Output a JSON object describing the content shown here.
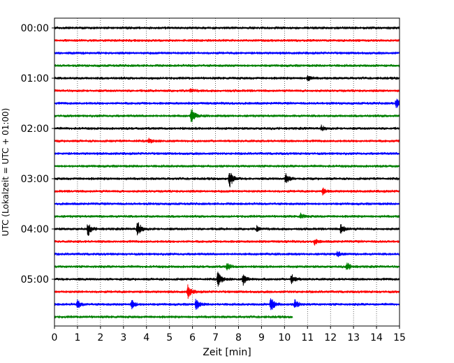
{
  "chart_data": {
    "type": "line",
    "subtype": "helicorder",
    "xlabel": "Zeit  [min]",
    "ylabel": "UTC (Lokalzeit = UTC + 01:00)",
    "xlim": [
      0,
      15
    ],
    "x_ticks": [
      "0",
      "1",
      "2",
      "3",
      "4",
      "5",
      "6",
      "7",
      "8",
      "9",
      "10",
      "11",
      "12",
      "13",
      "14",
      "15"
    ],
    "y_ticks": [
      "00:00",
      "01:00",
      "02:00",
      "03:00",
      "04:00",
      "05:00"
    ],
    "grid": "vertical dotted at each minute",
    "trace_colors": [
      "#000000",
      "#ff0000",
      "#0000ff",
      "#008000"
    ],
    "last_trace_end_min": 10.35,
    "rows": [
      {
        "start": "00:00",
        "color": "#000000",
        "events": []
      },
      {
        "start": "00:15",
        "color": "#ff0000",
        "events": []
      },
      {
        "start": "00:30",
        "color": "#0000ff",
        "events": []
      },
      {
        "start": "00:45",
        "color": "#008000",
        "events": []
      },
      {
        "start": "01:00",
        "color": "#000000",
        "events": [
          {
            "t": 11.0,
            "amp": 0.3
          }
        ]
      },
      {
        "start": "01:15",
        "color": "#ff0000",
        "events": [
          {
            "t": 5.9,
            "amp": 0.25
          }
        ]
      },
      {
        "start": "01:30",
        "color": "#0000ff",
        "events": [
          {
            "t": 14.85,
            "amp": 0.55
          }
        ]
      },
      {
        "start": "01:45",
        "color": "#008000",
        "events": [
          {
            "t": 5.95,
            "amp": 0.85
          }
        ]
      },
      {
        "start": "02:00",
        "color": "#000000",
        "events": [
          {
            "t": 11.6,
            "amp": 0.3
          }
        ]
      },
      {
        "start": "02:15",
        "color": "#ff0000",
        "events": [
          {
            "t": 4.1,
            "amp": 0.25
          }
        ]
      },
      {
        "start": "02:30",
        "color": "#0000ff",
        "events": []
      },
      {
        "start": "02:45",
        "color": "#008000",
        "events": []
      },
      {
        "start": "03:00",
        "color": "#000000",
        "events": [
          {
            "t": 7.6,
            "amp": 1.1
          },
          {
            "t": 10.05,
            "amp": 0.6
          }
        ]
      },
      {
        "start": "03:15",
        "color": "#ff0000",
        "events": [
          {
            "t": 11.65,
            "amp": 0.35
          }
        ]
      },
      {
        "start": "03:30",
        "color": "#0000ff",
        "events": []
      },
      {
        "start": "03:45",
        "color": "#008000",
        "events": [
          {
            "t": 10.7,
            "amp": 0.3
          }
        ]
      },
      {
        "start": "04:00",
        "color": "#000000",
        "events": [
          {
            "t": 1.45,
            "amp": 0.75
          },
          {
            "t": 3.6,
            "amp": 1.0
          },
          {
            "t": 8.8,
            "amp": 0.3
          },
          {
            "t": 12.45,
            "amp": 0.6
          }
        ]
      },
      {
        "start": "04:15",
        "color": "#ff0000",
        "events": [
          {
            "t": 11.3,
            "amp": 0.3
          }
        ]
      },
      {
        "start": "04:30",
        "color": "#0000ff",
        "events": [
          {
            "t": 12.3,
            "amp": 0.3
          }
        ]
      },
      {
        "start": "04:45",
        "color": "#008000",
        "events": [
          {
            "t": 7.5,
            "amp": 0.4
          },
          {
            "t": 12.7,
            "amp": 0.5
          }
        ]
      },
      {
        "start": "05:00",
        "color": "#000000",
        "events": [
          {
            "t": 7.1,
            "amp": 0.95
          },
          {
            "t": 8.2,
            "amp": 0.6
          },
          {
            "t": 10.3,
            "amp": 0.55
          }
        ]
      },
      {
        "start": "05:15",
        "color": "#ff0000",
        "events": [
          {
            "t": 5.8,
            "amp": 0.7
          }
        ]
      },
      {
        "start": "05:30",
        "color": "#0000ff",
        "events": [
          {
            "t": 1.0,
            "amp": 0.45
          },
          {
            "t": 3.35,
            "amp": 0.55
          },
          {
            "t": 6.15,
            "amp": 0.6
          },
          {
            "t": 9.4,
            "amp": 0.95
          },
          {
            "t": 10.45,
            "amp": 0.5
          }
        ]
      },
      {
        "start": "05:45",
        "color": "#008000",
        "events": []
      }
    ]
  }
}
